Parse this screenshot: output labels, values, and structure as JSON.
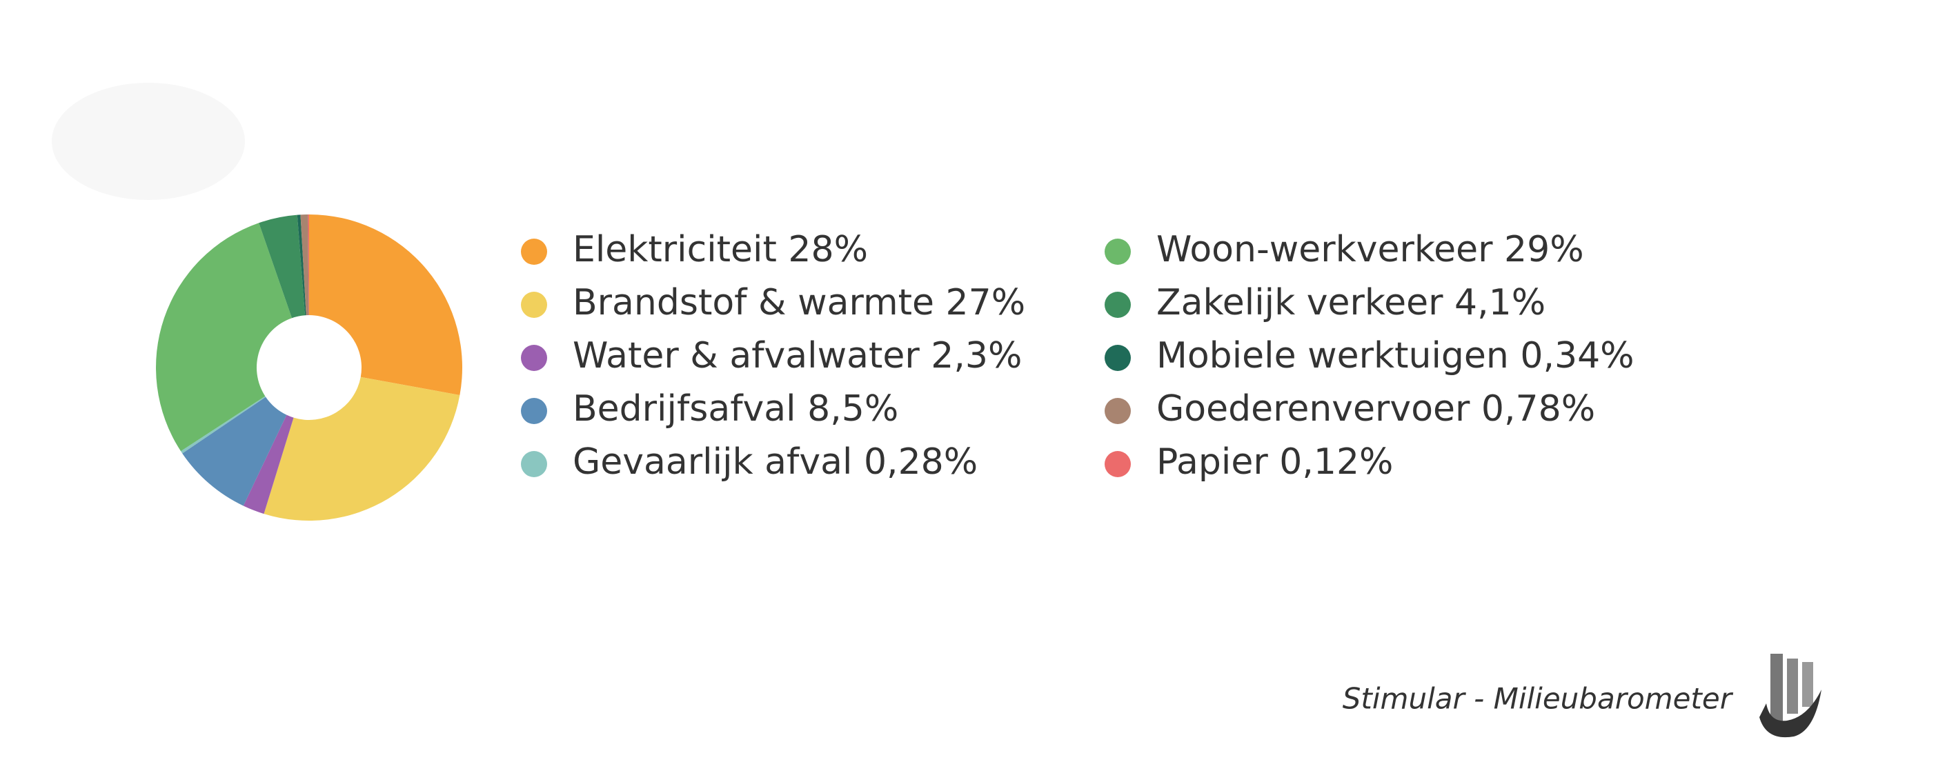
{
  "chart_data": {
    "type": "donut",
    "categories": [
      "Elektriciteit",
      "Brandstof & warmte",
      "Water & afvalwater",
      "Bedrijfsafval",
      "Gevaarlijk afval",
      "Woon-werkverkeer",
      "Zakelijk verkeer",
      "Mobiele werktuigen",
      "Goederenvervoer",
      "Papier"
    ],
    "values": [
      28,
      27,
      2.3,
      8.5,
      0.28,
      29,
      4.1,
      0.34,
      0.78,
      0.12
    ],
    "value_labels": [
      "28%",
      "27%",
      "2,3%",
      "8,5%",
      "0,28%",
      "29%",
      "4,1%",
      "0,34%",
      "0,78%",
      "0,12%"
    ],
    "colors": [
      "#f7a035",
      "#f1d05c",
      "#9b5fb0",
      "#5b8db8",
      "#8ac6c0",
      "#6cb96a",
      "#3d8f5e",
      "#1f6b58",
      "#a88470",
      "#ec6b6b"
    ]
  },
  "footer": {
    "source": "Stimular - Milieubarometer"
  }
}
